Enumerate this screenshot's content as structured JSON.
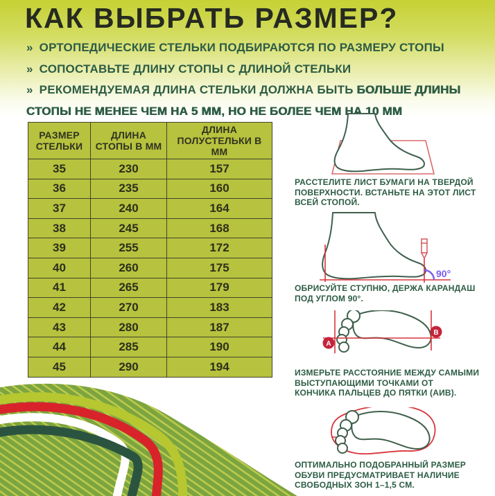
{
  "title": "КАК ВЫБРАТЬ РАЗМЕР?",
  "bullets": [
    {
      "marker": "»",
      "lead": "ОРТОПЕДИЧЕСКИЕ СТЕЛЬКИ ПОДБИРАЮТСЯ ПО РАЗМЕРУ СТОПЫ",
      "strong": ""
    },
    {
      "marker": "»",
      "lead": "СОПОСТАВЬТЕ ДЛИНУ СТОПЫ С ДЛИНОЙ СТЕЛЬКИ",
      "strong": ""
    },
    {
      "marker": "»",
      "lead": "РЕКОМЕНДУЕМАЯ ДЛИНА СТЕЛЬКИ ДОЛЖНА БЫТЬ ",
      "strong": "БОЛЬШЕ ДЛИНЫ СТОПЫ НЕ МЕНЕЕ ЧЕМ НА 5 ММ, НО НЕ БОЛЕЕ ЧЕМ НА 10 ММ"
    }
  ],
  "size_table": {
    "headers": [
      "РАЗМЕР\nСТЕЛЬКИ",
      "ДЛИНА\nСТОПЫ В ММ",
      "ДЛИНА\nПОЛУСТЕЛЬКИ В ММ"
    ],
    "rows": [
      [
        "35",
        "230",
        "157"
      ],
      [
        "36",
        "235",
        "160"
      ],
      [
        "37",
        "240",
        "164"
      ],
      [
        "38",
        "245",
        "168"
      ],
      [
        "39",
        "255",
        "172"
      ],
      [
        "40",
        "260",
        "175"
      ],
      [
        "41",
        "265",
        "179"
      ],
      [
        "42",
        "270",
        "183"
      ],
      [
        "43",
        "280",
        "187"
      ],
      [
        "44",
        "285",
        "190"
      ],
      [
        "45",
        "290",
        "194"
      ]
    ]
  },
  "steps": [
    {
      "illustration": "foot-on-paper",
      "caption": "РАССТЕЛИТЕ ЛИСТ БУМАГИ НА ТВЕРДОЙ\nПОВЕРХНОСТИ. ВСТАНЬТЕ НА ЭТОТ ЛИСТ\nВСЕЙ СТОПОЙ."
    },
    {
      "illustration": "trace-foot-with-pencil",
      "caption": "ОБРИСУЙТЕ СТУПНЮ, ДЕРЖА КАРАНДАШ\nПОД УГЛОМ 90°.",
      "angle_label": "90°"
    },
    {
      "illustration": "measure-footprint-a-b",
      "caption": "ИЗМЕРЬТЕ РАССТОЯНИЕ МЕЖДУ САМЫМИ\nВЫСТУПАЮЩИМИ ТОЧКАМИ ОТ\nКОНЧИКА ПАЛЬЦЕВ ДО ПЯТКИ (АИВ).",
      "point_a": "А",
      "point_b": "В"
    },
    {
      "illustration": "footprint-in-shoe-outline",
      "caption": "ОПТИМАЛЬНО ПОДОБРАННЫЙ РАЗМЕР\nОБУВИ ПРЕДУСМАТРИВАЕТ НАЛИЧИЕ\nСВОБОДНЫХ ЗОН 1–1,5 СМ."
    }
  ],
  "colors": {
    "header_gradient_top": "#c6d134",
    "table_bg": "#b7c23e",
    "table_line": "#40432c",
    "title_text": "#262a21",
    "accent_green_text": "#2d5c45",
    "outline_green": "#3f5f4c",
    "red": "#d8232b",
    "paper_red": "#d96b6b",
    "purple": "#7a5cf0",
    "badge_red": "#c4243b",
    "wave_chartreuse": "#b6c72f",
    "wave_dark_green": "#2b5440",
    "wave_hatch_green": "#7ca43f",
    "white": "#ffffff"
  }
}
